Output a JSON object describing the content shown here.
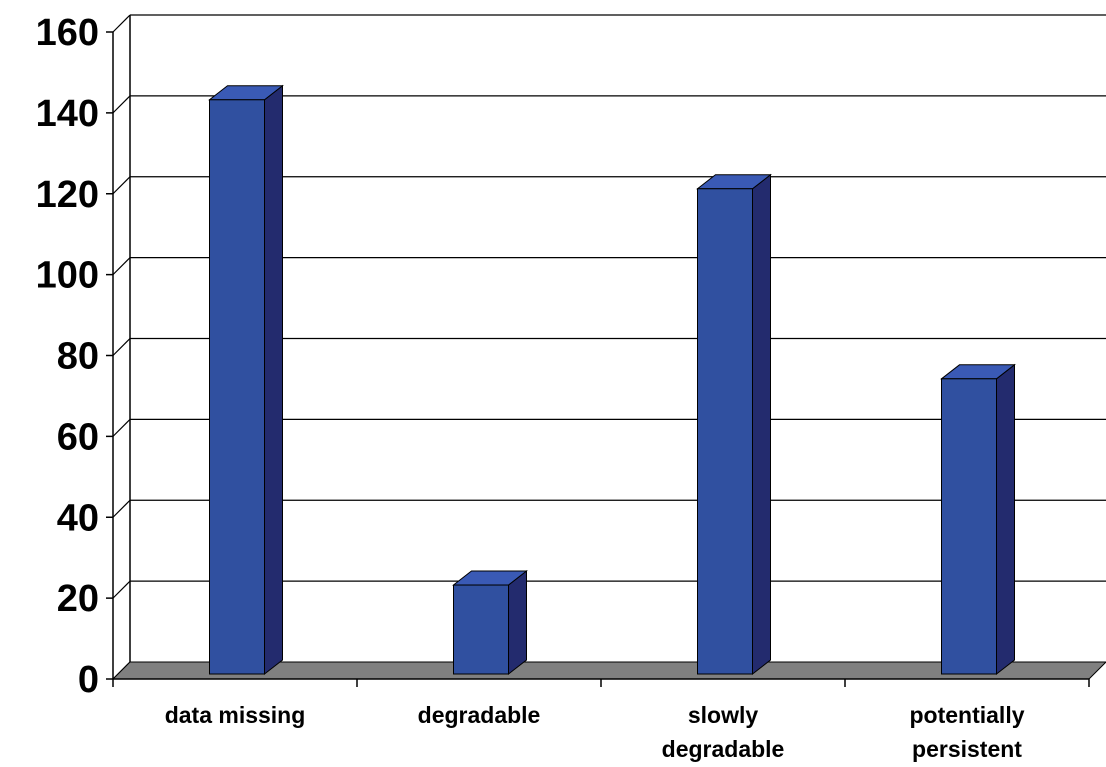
{
  "chart_data": {
    "type": "bar",
    "style": "3d-column",
    "categories": [
      [
        "data missing"
      ],
      [
        "degradable"
      ],
      [
        "slowly",
        "degradable"
      ],
      [
        "potentially",
        "persistent"
      ]
    ],
    "values": [
      142,
      22,
      120,
      73
    ],
    "ylim": [
      0,
      160
    ],
    "yticks": [
      0,
      20,
      40,
      60,
      80,
      100,
      120,
      140,
      160
    ],
    "grid": true,
    "legend": "none",
    "title": "",
    "xlabel": "",
    "ylabel": "",
    "colors": {
      "bar_front": "#3050A0",
      "bar_top": "#3A5AB5",
      "bar_side": "#232B6E",
      "floor": "#808080",
      "grid": "#000000"
    }
  }
}
